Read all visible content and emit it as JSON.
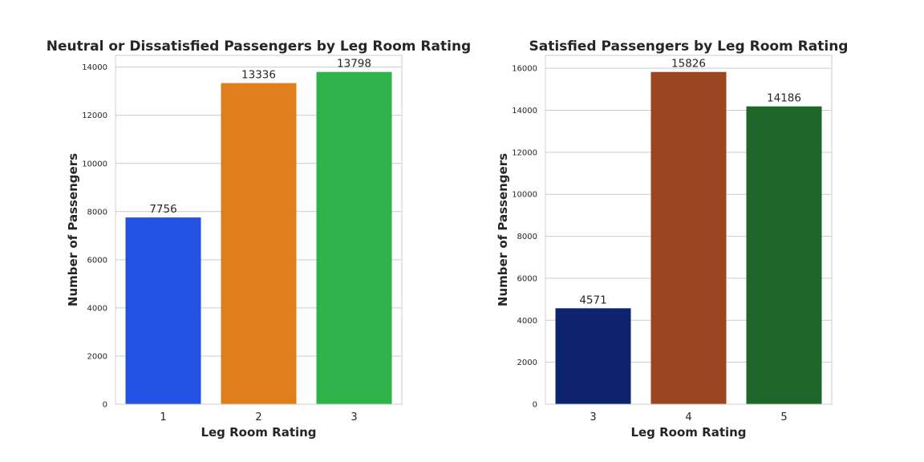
{
  "chart_data": [
    {
      "type": "bar",
      "title": "Neutral or Dissatisfied Passengers by Leg Room Rating",
      "xlabel": "Leg Room Rating",
      "ylabel": "Number of Passengers",
      "categories": [
        "1",
        "2",
        "3"
      ],
      "values": [
        7756,
        13336,
        13798
      ],
      "colors": [
        "#2351e3",
        "#e07e1e",
        "#2fb34a"
      ],
      "yticks": [
        0,
        2000,
        4000,
        6000,
        8000,
        10000,
        12000,
        14000
      ],
      "ylim": [
        0,
        14488
      ],
      "grid": true,
      "data_labels": true
    },
    {
      "type": "bar",
      "title": "Satisfied Passengers by Leg Room Rating",
      "xlabel": "Leg Room Rating",
      "ylabel": "Number of Passengers",
      "categories": [
        "3",
        "4",
        "5"
      ],
      "values": [
        4571,
        15826,
        14186
      ],
      "colors": [
        "#0e236e",
        "#9b4620",
        "#1e6629"
      ],
      "yticks": [
        0,
        2000,
        4000,
        6000,
        8000,
        10000,
        12000,
        14000,
        16000
      ],
      "ylim": [
        0,
        16617
      ],
      "grid": true,
      "data_labels": true
    }
  ]
}
